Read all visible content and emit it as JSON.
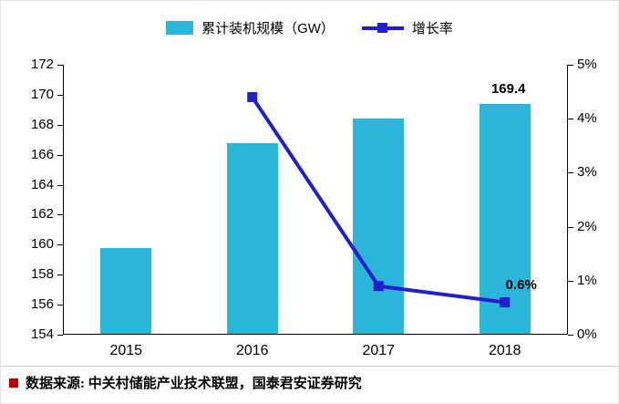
{
  "chart_data": {
    "type": "bar",
    "subtype": "combo-bar-line",
    "categories": [
      "2015",
      "2016",
      "2017",
      "2018"
    ],
    "series": [
      {
        "name": "累计装机规模（GW）",
        "type": "bar",
        "axis": "left",
        "color": "#2bb5d8",
        "values": [
          159.8,
          166.8,
          168.4,
          169.4
        ]
      },
      {
        "name": "增长率",
        "type": "line",
        "axis": "right",
        "color": "#1f1fcb",
        "values": [
          null,
          4.4,
          0.9,
          0.6
        ]
      }
    ],
    "left_axis": {
      "min": 154,
      "max": 172,
      "step": 2,
      "ticks": [
        "172",
        "170",
        "168",
        "166",
        "164",
        "162",
        "160",
        "158",
        "156",
        "154"
      ]
    },
    "right_axis": {
      "min": 0,
      "max": 5,
      "step": 1,
      "ticks": [
        "5%",
        "4%",
        "3%",
        "2%",
        "1%",
        "0%"
      ]
    },
    "annotations": [
      {
        "text": "169.4",
        "series": 0,
        "index": 3
      },
      {
        "text": "0.6%",
        "series": 1,
        "index": 3
      }
    ],
    "legend": [
      {
        "label": "累计装机规模（GW）",
        "swatch": "bar-swatch"
      },
      {
        "label": "增长率",
        "swatch": "line-marker-swatch"
      }
    ],
    "title": "",
    "grid": false,
    "legend_position": "top-center"
  },
  "footer": {
    "bullet_color": "#c00000",
    "text": "数据来源: 中关村储能产业技术联盟，国泰君安证券研究"
  }
}
